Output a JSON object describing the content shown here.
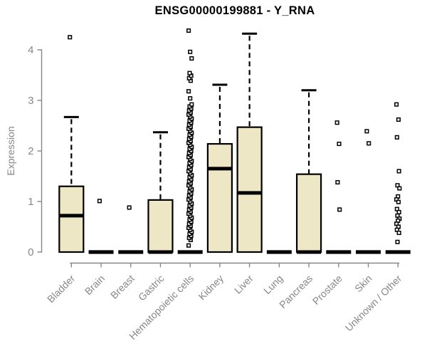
{
  "chart_data": {
    "type": "boxplot",
    "title": "ENSG00000199881 - Y_RNA",
    "ylabel": "Expression",
    "xlabel": "",
    "ylim": [
      0,
      4
    ],
    "yticks": [
      0,
      1,
      2,
      3,
      4
    ],
    "grid": false,
    "legend_position": "none",
    "categories": [
      "Bladder",
      "Brain",
      "Breast",
      "Gastric",
      "Hematopoietic cells",
      "Kidney",
      "Liver",
      "Lung",
      "Pancreas",
      "Prostate",
      "Skin",
      "Unknown / Other"
    ],
    "series": [
      {
        "name": "Bladder",
        "whisker_low": 0,
        "q1": 0,
        "median": 0.72,
        "q3": 1.3,
        "whisker_high": 2.67,
        "outliers": [
          4.25
        ]
      },
      {
        "name": "Brain",
        "whisker_low": 0,
        "q1": 0,
        "median": 0,
        "q3": 0,
        "whisker_high": 0,
        "outliers": [
          1.01
        ]
      },
      {
        "name": "Breast",
        "whisker_low": 0,
        "q1": 0,
        "median": 0,
        "q3": 0,
        "whisker_high": 0,
        "outliers": [
          0.88
        ]
      },
      {
        "name": "Gastric",
        "whisker_low": 0,
        "q1": 0,
        "median": 0,
        "q3": 1.03,
        "whisker_high": 2.37,
        "outliers": []
      },
      {
        "name": "Hematopoietic cells",
        "whisker_low": 0,
        "q1": 0,
        "median": 0,
        "q3": 0,
        "whisker_high": 0,
        "outliers": [
          0.13,
          0.24,
          0.28,
          0.32,
          0.36,
          0.4,
          0.44,
          0.48,
          0.52,
          0.56,
          0.6,
          0.64,
          0.68,
          0.72,
          0.76,
          0.8,
          0.84,
          0.88,
          0.92,
          0.96,
          1.0,
          1.04,
          1.08,
          1.12,
          1.16,
          1.2,
          1.24,
          1.28,
          1.32,
          1.36,
          1.4,
          1.44,
          1.48,
          1.52,
          1.56,
          1.6,
          1.64,
          1.68,
          1.72,
          1.76,
          1.8,
          1.84,
          1.88,
          1.92,
          1.96,
          2.0,
          2.04,
          2.08,
          2.12,
          2.16,
          2.2,
          2.24,
          2.28,
          2.32,
          2.36,
          2.4,
          2.44,
          2.48,
          2.52,
          2.56,
          2.6,
          2.64,
          2.68,
          2.72,
          2.76,
          2.8,
          2.84,
          2.88,
          2.92,
          3.04,
          3.18,
          3.39,
          3.44,
          3.49,
          3.54,
          3.83,
          3.96,
          4.38
        ]
      },
      {
        "name": "Kidney",
        "whisker_low": 0,
        "q1": 0,
        "median": 1.65,
        "q3": 2.14,
        "whisker_high": 3.31,
        "outliers": []
      },
      {
        "name": "Liver",
        "whisker_low": 0,
        "q1": 0,
        "median": 1.17,
        "q3": 2.47,
        "whisker_high": 4.32,
        "outliers": []
      },
      {
        "name": "Lung",
        "whisker_low": 0,
        "q1": 0,
        "median": 0,
        "q3": 0,
        "whisker_high": 0,
        "outliers": []
      },
      {
        "name": "Pancreas",
        "whisker_low": 0,
        "q1": 0,
        "median": 0,
        "q3": 1.54,
        "whisker_high": 3.2,
        "outliers": []
      },
      {
        "name": "Prostate",
        "whisker_low": 0,
        "q1": 0,
        "median": 0,
        "q3": 0,
        "whisker_high": 0,
        "outliers": [
          2.56,
          2.14,
          1.38,
          0.84
        ]
      },
      {
        "name": "Skin",
        "whisker_low": 0,
        "q1": 0,
        "median": 0,
        "q3": 0,
        "whisker_high": 0,
        "outliers": [
          2.39,
          2.15
        ]
      },
      {
        "name": "Unknown / Other",
        "whisker_low": 0,
        "q1": 0,
        "median": 0,
        "q3": 0,
        "whisker_high": 0,
        "outliers": [
          2.92,
          2.62,
          2.27,
          1.6,
          1.32,
          1.26,
          1.1,
          1.04,
          0.99,
          0.85,
          0.79,
          0.72,
          0.66,
          0.62,
          0.56,
          0.5,
          0.44,
          0.38,
          0.2
        ]
      }
    ],
    "colors": {
      "background": "#FFFFFF",
      "box_fill": "#EDE7C5",
      "box_border": "#000000",
      "median": "#000000",
      "whisker": "#000000",
      "outlier": "#000000",
      "axis": "#878787",
      "tick_label": "#878787",
      "title": "#000000"
    }
  }
}
